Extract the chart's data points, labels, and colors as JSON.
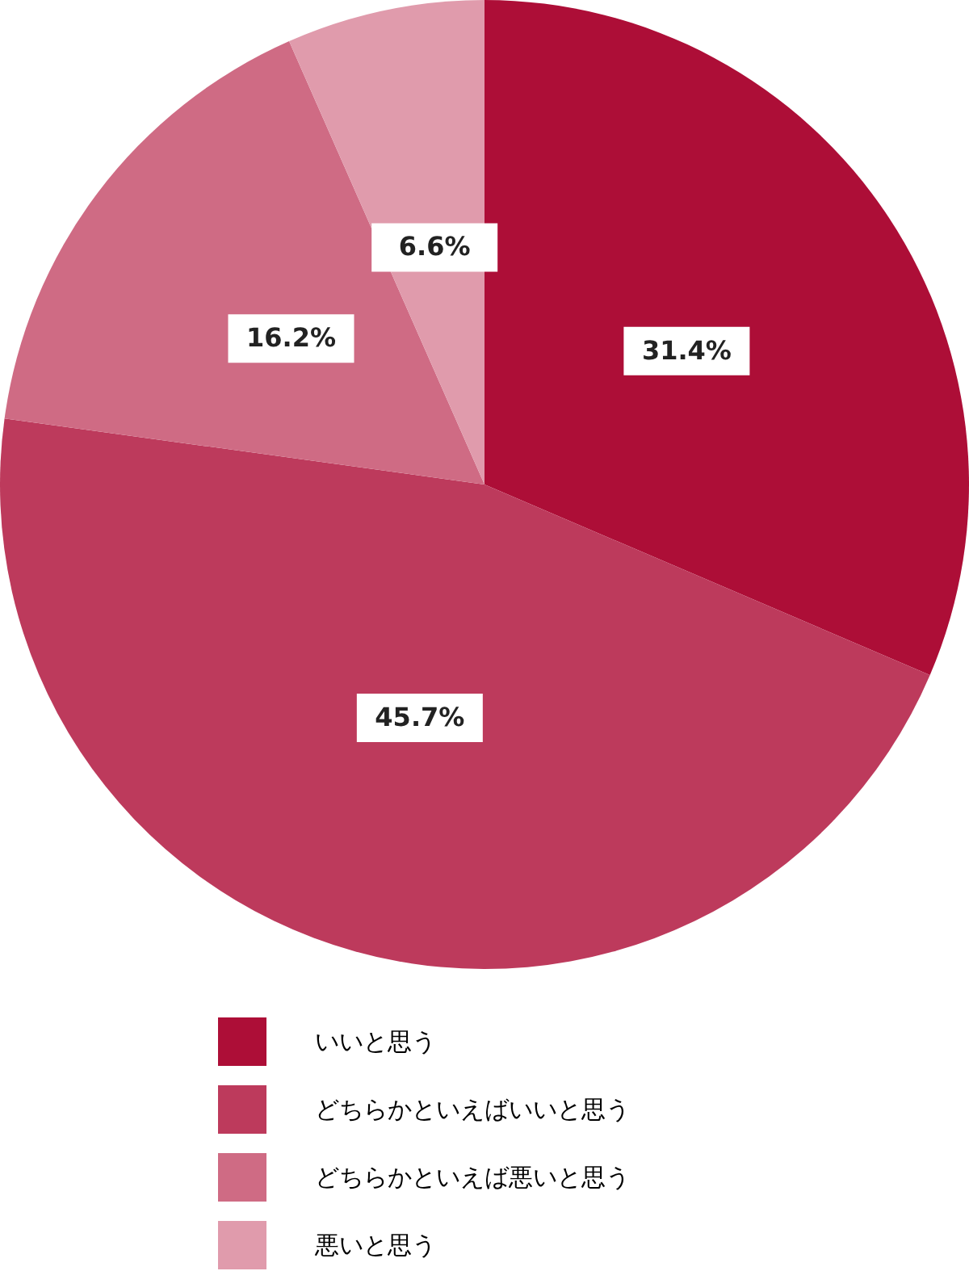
{
  "chart_data": {
    "type": "pie",
    "categories": [
      "いいと思う",
      "どちらかといえばいいと思う",
      "どちらかといえば悪いと思う",
      "悪いと思う"
    ],
    "values": [
      31.4,
      45.7,
      16.2,
      6.6
    ],
    "colors": [
      "#ad0e37",
      "#bd3a5c",
      "#cf6b84",
      "#e09bac"
    ],
    "value_labels": [
      "31.4%",
      "45.7%",
      "16.2%",
      "6.6%"
    ],
    "legend": "bottom"
  }
}
